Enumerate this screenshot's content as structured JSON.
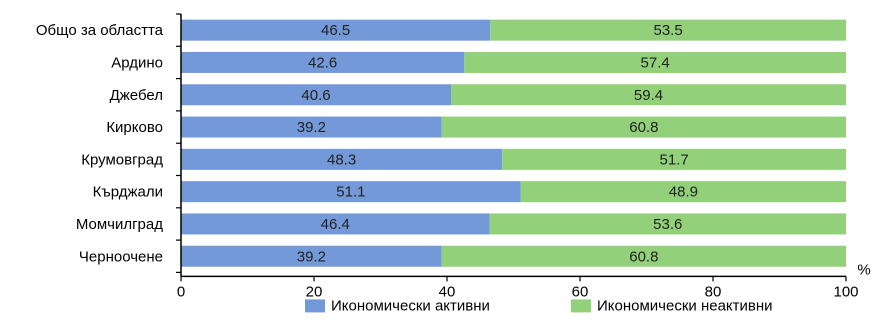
{
  "chart_data": {
    "type": "bar",
    "orientation": "horizontal",
    "stacked": true,
    "categories": [
      "Общо за областта",
      "Ардино",
      "Джебел",
      "Кирково",
      "Крумовград",
      "Кърджали",
      "Момчилград",
      "Черноочене"
    ],
    "series": [
      {
        "name": "Икономически активни",
        "color": "#7399d9",
        "values": [
          46.5,
          42.6,
          40.6,
          39.2,
          48.3,
          51.1,
          46.4,
          39.2
        ]
      },
      {
        "name": "Икономически неактивни",
        "color": "#92d07a",
        "values": [
          53.5,
          57.4,
          59.4,
          60.8,
          51.7,
          48.9,
          53.6,
          60.8
        ]
      }
    ],
    "xlim": [
      0,
      100
    ],
    "xticks": [
      "0",
      "20",
      "40",
      "60",
      "80",
      "100"
    ],
    "xunit": "%",
    "legend": "bottom",
    "grid": false
  }
}
